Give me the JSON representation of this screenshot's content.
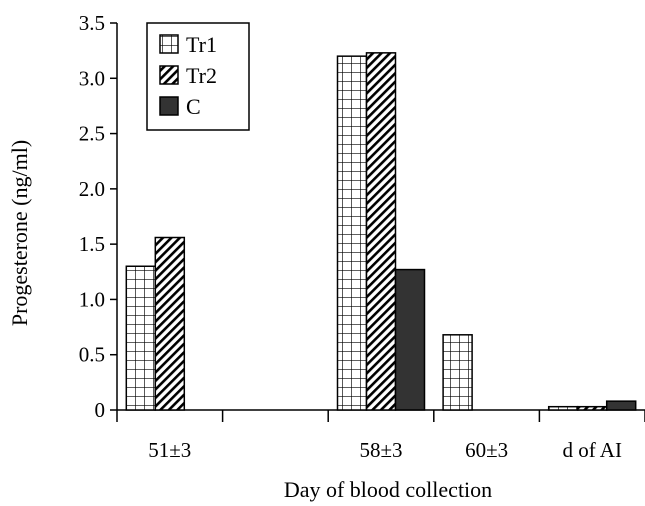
{
  "chart_data": {
    "type": "bar",
    "title": "",
    "xlabel": "Day of blood collection",
    "ylabel": "Progesterone (ng/ml)",
    "ylim": [
      0,
      3.5
    ],
    "yticks": [
      "0",
      "0.5",
      "1.0",
      "1.5",
      "2.0",
      "2.5",
      "3.0",
      "3.5"
    ],
    "categories": [
      "51±3",
      "",
      "58±3",
      "60±3",
      "d of AI"
    ],
    "series": [
      {
        "name": "Tr1",
        "pattern": "grid",
        "color": "#000000",
        "values": [
          1.3,
          null,
          3.2,
          0.68,
          0.03
        ]
      },
      {
        "name": "Tr2",
        "pattern": "diagonal",
        "color": "#000000",
        "values": [
          1.56,
          null,
          3.23,
          null,
          0.03
        ]
      },
      {
        "name": "C",
        "pattern": "solid",
        "color": "#333333",
        "values": [
          null,
          null,
          1.27,
          null,
          0.08
        ]
      }
    ],
    "legend_position": "top-left",
    "grid": false
  }
}
